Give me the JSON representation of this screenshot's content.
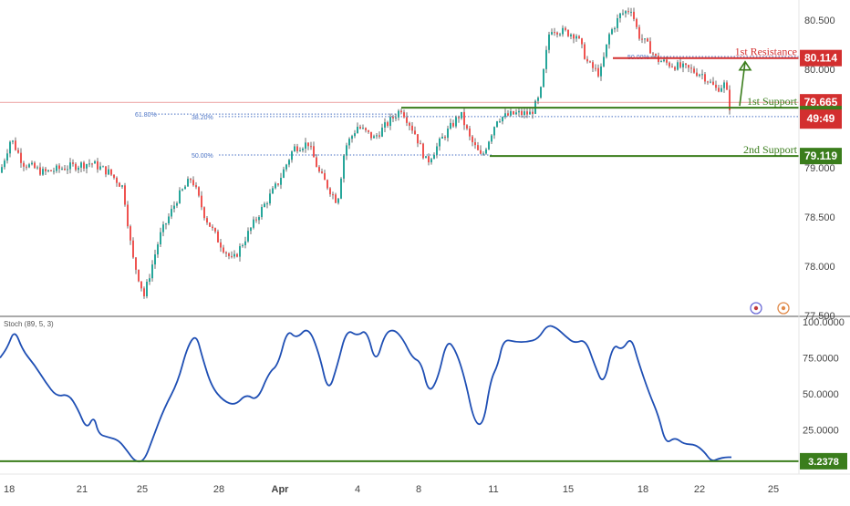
{
  "chart_data": [
    {
      "type": "candlestick",
      "panel": "price",
      "ylim": [
        77.5,
        80.68
      ],
      "y_ticks": [
        "80.500",
        "80.000",
        "79.000",
        "78.500",
        "78.000",
        "77.500"
      ],
      "y_tick_values": [
        80.5,
        80.0,
        79.0,
        78.5,
        78.0,
        77.5
      ],
      "fib_labels": [
        "61.80%",
        "38.20%",
        "50.00%",
        "50.00%"
      ],
      "levels": [
        {
          "name": "1st Resistance",
          "value": 80.114,
          "color": "#d32f2f"
        },
        {
          "name": "1st Support",
          "value": 79.61,
          "color": "#3a7d1c"
        },
        {
          "name": "2nd Support",
          "value": 79.119,
          "color": "#3a7d1c"
        }
      ],
      "last_price": {
        "value": "79.665",
        "countdown": "49:49",
        "color": "#d32f2f"
      },
      "resistance_price_tag": "80.114",
      "support2_price_tag": "79.119",
      "anchors": [
        {
          "x": 0,
          "y": 78.95
        },
        {
          "x": 12,
          "y": 79.3
        },
        {
          "x": 25,
          "y": 79.05
        },
        {
          "x": 48,
          "y": 78.95
        },
        {
          "x": 70,
          "y": 79.0
        },
        {
          "x": 100,
          "y": 79.05
        },
        {
          "x": 120,
          "y": 78.95
        },
        {
          "x": 135,
          "y": 78.8
        },
        {
          "x": 145,
          "y": 78.1
        },
        {
          "x": 158,
          "y": 77.7
        },
        {
          "x": 175,
          "y": 78.3
        },
        {
          "x": 195,
          "y": 78.7
        },
        {
          "x": 210,
          "y": 78.9
        },
        {
          "x": 225,
          "y": 78.5
        },
        {
          "x": 240,
          "y": 78.25
        },
        {
          "x": 255,
          "y": 78.05
        },
        {
          "x": 270,
          "y": 78.3
        },
        {
          "x": 285,
          "y": 78.55
        },
        {
          "x": 305,
          "y": 78.85
        },
        {
          "x": 322,
          "y": 79.2
        },
        {
          "x": 338,
          "y": 79.25
        },
        {
          "x": 350,
          "y": 78.95
        },
        {
          "x": 370,
          "y": 78.65
        },
        {
          "x": 378,
          "y": 79.2
        },
        {
          "x": 392,
          "y": 79.42
        },
        {
          "x": 410,
          "y": 79.3
        },
        {
          "x": 425,
          "y": 79.45
        },
        {
          "x": 440,
          "y": 79.6
        },
        {
          "x": 455,
          "y": 79.35
        },
        {
          "x": 468,
          "y": 79.05
        },
        {
          "x": 485,
          "y": 79.3
        },
        {
          "x": 505,
          "y": 79.55
        },
        {
          "x": 515,
          "y": 79.3
        },
        {
          "x": 528,
          "y": 79.1
        },
        {
          "x": 545,
          "y": 79.5
        },
        {
          "x": 565,
          "y": 79.55
        },
        {
          "x": 582,
          "y": 79.55
        },
        {
          "x": 592,
          "y": 79.72
        },
        {
          "x": 603,
          "y": 80.42
        },
        {
          "x": 618,
          "y": 80.38
        },
        {
          "x": 632,
          "y": 80.35
        },
        {
          "x": 645,
          "y": 80.05
        },
        {
          "x": 658,
          "y": 79.95
        },
        {
          "x": 668,
          "y": 80.35
        },
        {
          "x": 680,
          "y": 80.55
        },
        {
          "x": 692,
          "y": 80.62
        },
        {
          "x": 700,
          "y": 80.35
        },
        {
          "x": 712,
          "y": 80.22
        },
        {
          "x": 720,
          "y": 80.1
        },
        {
          "x": 735,
          "y": 80.05
        },
        {
          "x": 755,
          "y": 80.0
        },
        {
          "x": 770,
          "y": 79.95
        },
        {
          "x": 785,
          "y": 79.8
        },
        {
          "x": 795,
          "y": 79.85
        },
        {
          "x": 800,
          "y": 79.62
        }
      ]
    },
    {
      "type": "line",
      "panel": "oscillator",
      "indicator_label": "Stoch (89, 5, 3)",
      "ylim": [
        0,
        100
      ],
      "y_ticks": [
        "100.0000",
        "75.0000",
        "50.0000",
        "25.0000"
      ],
      "y_tick_values": [
        100,
        75,
        50,
        25
      ],
      "current_value": "3.2378",
      "level_line": 3.2378,
      "line_color": "#1f4fb4",
      "anchors": [
        {
          "x": 0,
          "y": 75
        },
        {
          "x": 8,
          "y": 82
        },
        {
          "x": 16,
          "y": 95
        },
        {
          "x": 25,
          "y": 80
        },
        {
          "x": 38,
          "y": 70
        },
        {
          "x": 50,
          "y": 58
        },
        {
          "x": 62,
          "y": 48
        },
        {
          "x": 75,
          "y": 50
        },
        {
          "x": 85,
          "y": 40
        },
        {
          "x": 95,
          "y": 25
        },
        {
          "x": 103,
          "y": 35
        },
        {
          "x": 108,
          "y": 22
        },
        {
          "x": 118,
          "y": 20
        },
        {
          "x": 130,
          "y": 18
        },
        {
          "x": 140,
          "y": 10
        },
        {
          "x": 148,
          "y": 3
        },
        {
          "x": 158,
          "y": 3
        },
        {
          "x": 168,
          "y": 20
        },
        {
          "x": 180,
          "y": 40
        },
        {
          "x": 195,
          "y": 58
        },
        {
          "x": 205,
          "y": 82
        },
        {
          "x": 215,
          "y": 92
        },
        {
          "x": 222,
          "y": 75
        },
        {
          "x": 232,
          "y": 55
        },
        {
          "x": 245,
          "y": 45
        },
        {
          "x": 258,
          "y": 42
        },
        {
          "x": 270,
          "y": 50
        },
        {
          "x": 282,
          "y": 45
        },
        {
          "x": 295,
          "y": 65
        },
        {
          "x": 305,
          "y": 70
        },
        {
          "x": 315,
          "y": 95
        },
        {
          "x": 325,
          "y": 88
        },
        {
          "x": 338,
          "y": 97
        },
        {
          "x": 350,
          "y": 78
        },
        {
          "x": 360,
          "y": 50
        },
        {
          "x": 370,
          "y": 70
        },
        {
          "x": 380,
          "y": 95
        },
        {
          "x": 392,
          "y": 90
        },
        {
          "x": 402,
          "y": 95
        },
        {
          "x": 412,
          "y": 70
        },
        {
          "x": 422,
          "y": 92
        },
        {
          "x": 432,
          "y": 95
        },
        {
          "x": 442,
          "y": 88
        },
        {
          "x": 452,
          "y": 75
        },
        {
          "x": 462,
          "y": 72
        },
        {
          "x": 470,
          "y": 50
        },
        {
          "x": 480,
          "y": 60
        },
        {
          "x": 490,
          "y": 88
        },
        {
          "x": 500,
          "y": 80
        },
        {
          "x": 510,
          "y": 60
        },
        {
          "x": 520,
          "y": 30
        },
        {
          "x": 530,
          "y": 28
        },
        {
          "x": 538,
          "y": 60
        },
        {
          "x": 546,
          "y": 70
        },
        {
          "x": 552,
          "y": 88
        },
        {
          "x": 565,
          "y": 86
        },
        {
          "x": 578,
          "y": 86
        },
        {
          "x": 590,
          "y": 88
        },
        {
          "x": 600,
          "y": 98
        },
        {
          "x": 610,
          "y": 96
        },
        {
          "x": 620,
          "y": 90
        },
        {
          "x": 630,
          "y": 85
        },
        {
          "x": 642,
          "y": 88
        },
        {
          "x": 652,
          "y": 70
        },
        {
          "x": 662,
          "y": 55
        },
        {
          "x": 672,
          "y": 85
        },
        {
          "x": 682,
          "y": 80
        },
        {
          "x": 692,
          "y": 90
        },
        {
          "x": 700,
          "y": 72
        },
        {
          "x": 712,
          "y": 50
        },
        {
          "x": 722,
          "y": 35
        },
        {
          "x": 730,
          "y": 15
        },
        {
          "x": 740,
          "y": 20
        },
        {
          "x": 750,
          "y": 15
        },
        {
          "x": 762,
          "y": 15
        },
        {
          "x": 772,
          "y": 10
        },
        {
          "x": 780,
          "y": 3
        },
        {
          "x": 788,
          "y": 5
        },
        {
          "x": 795,
          "y": 6
        },
        {
          "x": 802,
          "y": 6
        }
      ]
    }
  ],
  "x_axis": {
    "ticks": [
      "18",
      "21",
      "25",
      "28",
      "Apr",
      "4",
      "8",
      "11",
      "15",
      "18",
      "22",
      "25"
    ],
    "bold_index": 4
  },
  "colors": {
    "bull": "#26a69a",
    "bear": "#ef5350",
    "candle": "#4a4a4a",
    "resistance": "#d32f2f",
    "support": "#3a7d1c",
    "fib": "#4a72c4",
    "axis_text": "#444444"
  },
  "icons": [
    "replay-icon",
    "alert-icon"
  ]
}
